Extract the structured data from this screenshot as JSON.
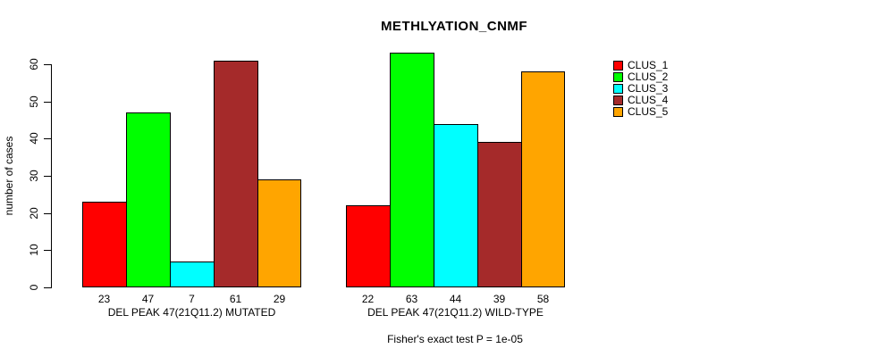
{
  "chart_data": {
    "type": "bar",
    "title": "METHLYATION_CNMF",
    "ylabel": "number of cases",
    "ylim": [
      0,
      60
    ],
    "yticks": [
      0,
      10,
      20,
      30,
      40,
      50,
      60
    ],
    "grid": false,
    "legend_position": "right",
    "series_names": [
      "CLUS_1",
      "CLUS_2",
      "CLUS_3",
      "CLUS_4",
      "CLUS_5"
    ],
    "series_colors": [
      "#FF0000",
      "#00FF00",
      "#00FFFF",
      "#A52A2A",
      "#FFA500"
    ],
    "groups": [
      {
        "label": "DEL PEAK 47(21Q11.2) MUTATED",
        "values": [
          23,
          47,
          7,
          61,
          29
        ]
      },
      {
        "label": "DEL PEAK 47(21Q11.2) WILD-TYPE",
        "values": [
          22,
          63,
          44,
          39,
          58
        ]
      }
    ],
    "bar_value_labels_shown": true,
    "annotation": "Fisher's exact test P = 1e-05"
  }
}
